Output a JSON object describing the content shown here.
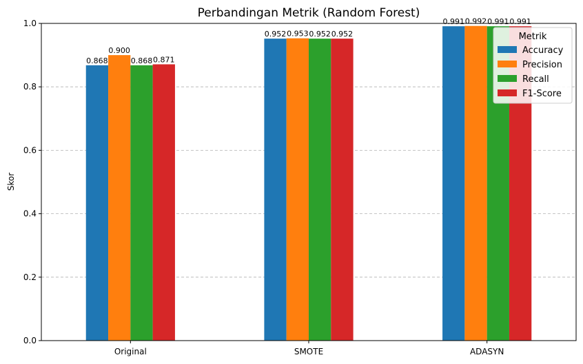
{
  "chart_data": {
    "type": "bar",
    "title": "Perbandingan Metrik (Random Forest)",
    "xlabel": "",
    "ylabel": "Skor",
    "ylim": [
      0,
      1.0
    ],
    "yticks": [
      "0.0",
      "0.2",
      "0.4",
      "0.6",
      "0.8",
      "1.0"
    ],
    "grid": "y-dashed",
    "legend_title": "Metrik",
    "legend_position": "top-right",
    "categories": [
      "Original",
      "SMOTE",
      "ADASYN"
    ],
    "series": [
      {
        "name": "Accuracy",
        "color": "#1f77b4",
        "values": [
          0.868,
          0.952,
          0.991
        ],
        "labels": [
          "0.868",
          "0.952",
          "0.991"
        ]
      },
      {
        "name": "Precision",
        "color": "#ff7f0e",
        "values": [
          0.9,
          0.953,
          0.992
        ],
        "labels": [
          "0.900",
          "0.953",
          "0.992"
        ]
      },
      {
        "name": "Recall",
        "color": "#2ca02c",
        "values": [
          0.868,
          0.952,
          0.991
        ],
        "labels": [
          "0.868",
          "0.952",
          "0.991"
        ]
      },
      {
        "name": "F1-Score",
        "color": "#d62728",
        "values": [
          0.871,
          0.952,
          0.991
        ],
        "labels": [
          "0.871",
          "0.952",
          "0.991"
        ]
      }
    ]
  }
}
